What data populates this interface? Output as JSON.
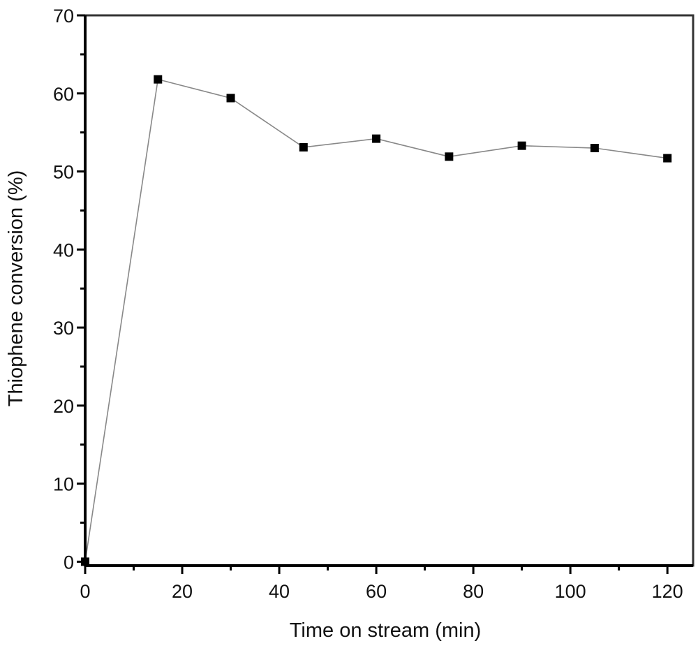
{
  "chart_data": {
    "type": "line",
    "title": "",
    "xlabel": "Time on stream (min)",
    "ylabel": "Thiophene conversion (%)",
    "xlim": [
      0,
      125.3
    ],
    "ylim": [
      -0.5,
      70
    ],
    "xticks": [
      0,
      20,
      40,
      60,
      80,
      100,
      120
    ],
    "yticks": [
      0,
      10,
      20,
      30,
      40,
      50,
      60,
      70
    ],
    "grid": false,
    "legend": "none",
    "series": [
      {
        "name": "Thiophene conversion",
        "marker": "square",
        "color": "#000000",
        "line_color": "#888888",
        "x": [
          0,
          15,
          30,
          45,
          60,
          75,
          90,
          105,
          120
        ],
        "y": [
          0,
          61.8,
          59.4,
          53.1,
          54.2,
          51.9,
          53.3,
          53.0,
          51.7
        ]
      }
    ]
  }
}
